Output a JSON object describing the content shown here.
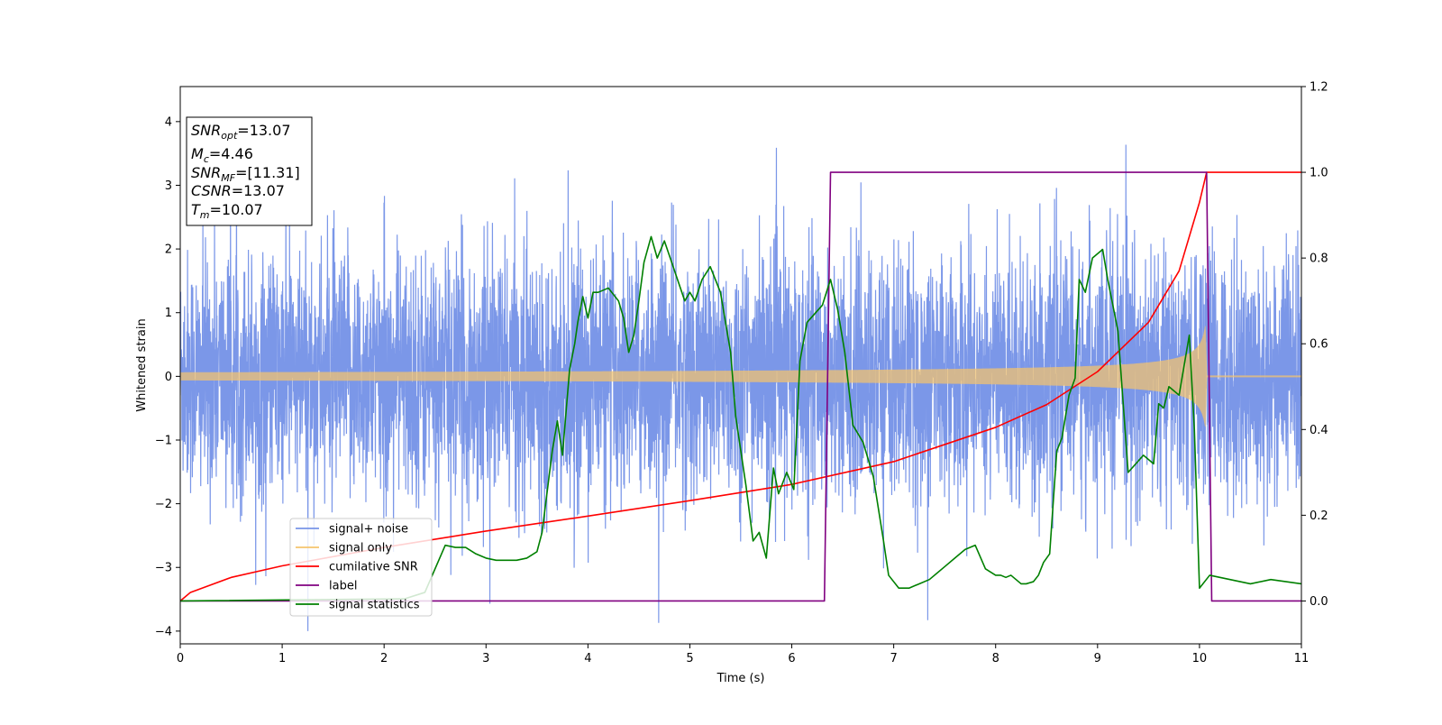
{
  "chart_data": {
    "type": "line",
    "xlabel": "Time (s)",
    "ylabel": "Whitened strain",
    "xlim": [
      0,
      11
    ],
    "ylim": [
      -4.2,
      4.55
    ],
    "y2lim": [
      -0.1,
      1.2
    ],
    "xticks": [
      "0",
      "1",
      "2",
      "3",
      "4",
      "5",
      "6",
      "7",
      "8",
      "9",
      "10",
      "11"
    ],
    "yticks": [
      "−4",
      "−3",
      "−2",
      "−1",
      "0",
      "1",
      "2",
      "3",
      "4"
    ],
    "y2ticks": [
      "0.0",
      "0.2",
      "0.4",
      "0.6",
      "0.8",
      "1.0",
      "1.2"
    ],
    "grid": false,
    "legend_position": "lower-left",
    "annotation": {
      "lines": [
        {
          "main": "SNR",
          "sub": "opt",
          "rest": "=13.07"
        },
        {
          "main": "M",
          "sub": "c",
          "rest": "=4.46"
        },
        {
          "main": "SNR",
          "sub": "MF",
          "rest": "=[11.31]"
        },
        {
          "main": "CSNR",
          "sub": "",
          "rest": "=13.07"
        },
        {
          "main": "T",
          "sub": "m",
          "rest": "=10.07"
        }
      ]
    },
    "series": [
      {
        "name": "signal+ noise",
        "color": "#7895e8",
        "axis": "left",
        "kind": "noise",
        "amplitude_std": 0.95,
        "x_range": [
          0,
          11
        ]
      },
      {
        "name": "signal only",
        "color": "#f5c46e",
        "axis": "left",
        "kind": "chirp",
        "amplitude_start": 0.06,
        "amplitude_peak": 1.1,
        "merger_time": 10.07
      },
      {
        "name": "cumilative SNR",
        "color": "#ff0000",
        "axis": "right",
        "x": [
          0,
          0.1,
          0.5,
          1,
          2,
          3,
          4,
          5,
          6,
          7,
          8,
          8.5,
          9,
          9.5,
          9.8,
          10,
          10.07,
          11
        ],
        "values": [
          0,
          0.02,
          0.055,
          0.082,
          0.125,
          0.163,
          0.198,
          0.234,
          0.272,
          0.325,
          0.405,
          0.458,
          0.535,
          0.65,
          0.77,
          0.93,
          1.0,
          1.0
        ]
      },
      {
        "name": "label",
        "color": "#800080",
        "axis": "right",
        "x": [
          0,
          6.32,
          6.38,
          10.07,
          10.12,
          11
        ],
        "values": [
          0,
          0,
          1,
          1,
          0,
          0
        ]
      },
      {
        "name": "signal statistics",
        "color": "#008000",
        "axis": "right",
        "x": [
          0,
          2.2,
          2.4,
          2.6,
          2.7,
          2.8,
          2.9,
          3.0,
          3.1,
          3.3,
          3.4,
          3.5,
          3.55,
          3.65,
          3.7,
          3.75,
          3.82,
          3.87,
          3.9,
          3.95,
          4.0,
          4.05,
          4.1,
          4.2,
          4.3,
          4.35,
          4.4,
          4.45,
          4.5,
          4.55,
          4.62,
          4.68,
          4.75,
          4.85,
          4.95,
          5.0,
          5.05,
          5.12,
          5.2,
          5.3,
          5.35,
          5.4,
          5.45,
          5.5,
          5.55,
          5.62,
          5.68,
          5.75,
          5.82,
          5.87,
          5.95,
          6.02,
          6.08,
          6.15,
          6.3,
          6.38,
          6.45,
          6.52,
          6.6,
          6.7,
          6.8,
          6.9,
          6.95,
          7.05,
          7.15,
          7.25,
          7.35,
          7.5,
          7.6,
          7.7,
          7.8,
          7.9,
          8.0,
          8.05,
          8.1,
          8.15,
          8.2,
          8.25,
          8.3,
          8.37,
          8.42,
          8.47,
          8.53,
          8.6,
          8.65,
          8.72,
          8.78,
          8.82,
          8.88,
          8.95,
          9.05,
          9.1,
          9.2,
          9.3,
          9.45,
          9.55,
          9.6,
          9.65,
          9.7,
          9.8,
          9.9,
          9.95,
          10.0,
          10.1,
          10.3,
          10.5,
          10.7,
          11.0
        ],
        "values": [
          0,
          0.005,
          0.02,
          0.13,
          0.125,
          0.125,
          0.11,
          0.1,
          0.095,
          0.095,
          0.1,
          0.115,
          0.16,
          0.35,
          0.42,
          0.34,
          0.54,
          0.6,
          0.65,
          0.71,
          0.66,
          0.72,
          0.72,
          0.73,
          0.7,
          0.66,
          0.58,
          0.62,
          0.7,
          0.79,
          0.85,
          0.8,
          0.84,
          0.77,
          0.7,
          0.72,
          0.7,
          0.75,
          0.78,
          0.72,
          0.65,
          0.58,
          0.43,
          0.35,
          0.27,
          0.14,
          0.16,
          0.1,
          0.31,
          0.25,
          0.3,
          0.26,
          0.56,
          0.65,
          0.69,
          0.75,
          0.68,
          0.58,
          0.41,
          0.37,
          0.29,
          0.14,
          0.06,
          0.03,
          0.03,
          0.04,
          0.05,
          0.08,
          0.1,
          0.12,
          0.13,
          0.075,
          0.06,
          0.06,
          0.055,
          0.06,
          0.05,
          0.04,
          0.04,
          0.045,
          0.06,
          0.09,
          0.11,
          0.35,
          0.38,
          0.48,
          0.52,
          0.75,
          0.72,
          0.8,
          0.82,
          0.75,
          0.63,
          0.3,
          0.34,
          0.32,
          0.46,
          0.45,
          0.5,
          0.48,
          0.62,
          0.4,
          0.03,
          0.06,
          0.05,
          0.04,
          0.05,
          0.04
        ]
      }
    ]
  }
}
